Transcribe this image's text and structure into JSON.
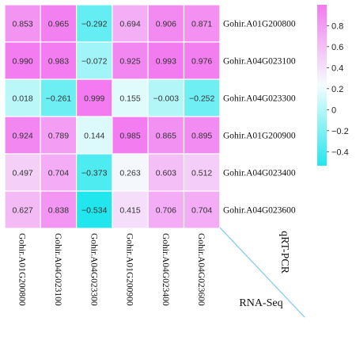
{
  "chart_data": {
    "type": "heatmap",
    "rows": [
      "Gohir.A01G200800",
      "Gohir.A04G023100",
      "Gohir.A04G023300",
      "Gohir.A01G200900",
      "Gohir.A04G023400",
      "Gohir.A04G023600"
    ],
    "cols": [
      "Gohir.A01G200800",
      "Gohir.A04G023100",
      "Gohir.A04G023300",
      "Gohir.A01G200900",
      "Gohir.A04G023400",
      "Gohir.A04G023600"
    ],
    "values": [
      [
        0.853,
        0.965,
        -0.292,
        0.694,
        0.906,
        0.871
      ],
      [
        0.99,
        0.983,
        -0.072,
        0.925,
        0.993,
        0.976
      ],
      [
        0.018,
        -0.261,
        0.999,
        0.155,
        -0.003,
        -0.252
      ],
      [
        0.924,
        0.789,
        0.144,
        0.985,
        0.865,
        0.895
      ],
      [
        0.497,
        0.704,
        -0.373,
        0.263,
        0.603,
        0.512
      ],
      [
        0.627,
        0.838,
        -0.534,
        0.415,
        0.706,
        0.704
      ]
    ],
    "labels": [
      [
        "0.853",
        "0.965",
        "−0.292",
        "0.694",
        "0.906",
        "0.871"
      ],
      [
        "0.990",
        "0.983",
        "−0.072",
        "0.925",
        "0.993",
        "0.976"
      ],
      [
        "0.018",
        "−0.261",
        "0.999",
        "0.155",
        "−0.003",
        "−0.252"
      ],
      [
        "0.924",
        "0.789",
        "0.144",
        "0.985",
        "0.865",
        "0.895"
      ],
      [
        "0.497",
        "0.704",
        "−0.373",
        "0.263",
        "0.603",
        "0.512"
      ],
      [
        "0.627",
        "0.838",
        "−0.534",
        "0.415",
        "0.706",
        "0.704"
      ]
    ],
    "row_axis_label": "qRT-PCR",
    "col_axis_label": "RNA-Seq",
    "colorbar": {
      "min": -0.534,
      "max": 0.999,
      "ticks": [
        "0.8",
        "0.6",
        "0.4",
        "0.2",
        "0",
        "−0.2",
        "−0.4"
      ],
      "tick_values": [
        0.8,
        0.6,
        0.4,
        0.2,
        0,
        -0.2,
        -0.4
      ],
      "low_color": "#22e6ee",
      "mid_color": "#f4fdfd",
      "high_color": "#f37af0"
    },
    "diagonal_line_color": "#87ceeb"
  }
}
